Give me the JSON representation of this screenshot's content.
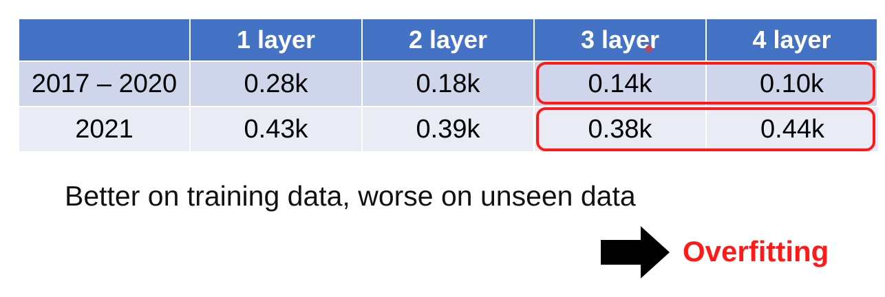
{
  "chart_data": {
    "type": "table",
    "columns": [
      "",
      "1 layer",
      "2 layer",
      "3 layer",
      "4 layer"
    ],
    "rows": [
      {
        "label": "2017 – 2020",
        "values": [
          "0.28k",
          "0.18k",
          "0.14k",
          "0.10k"
        ]
      },
      {
        "label": "2021",
        "values": [
          "0.43k",
          "0.39k",
          "0.38k",
          "0.44k"
        ]
      }
    ],
    "highlighted_columns": [
      "3 layer",
      "4 layer"
    ]
  },
  "caption": "Better on training data, worse on unseen data",
  "conclusion": "Overfitting",
  "icons": {
    "arrow": "right-arrow-icon",
    "cursor": "pointer-dot-icon"
  },
  "colors": {
    "header_bg": "#4472c4",
    "row1_bg": "#cfd5ea",
    "row2_bg": "#e9ebf5",
    "highlight": "#ff1a1a"
  }
}
